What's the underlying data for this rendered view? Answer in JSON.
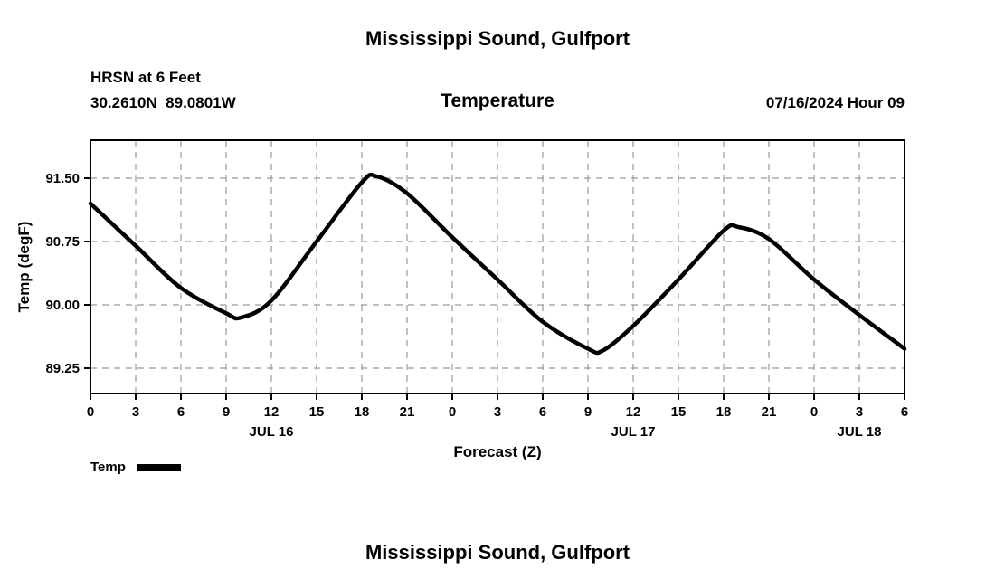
{
  "header": {
    "top_title": "Mississippi Sound, Gulfport",
    "station_name": "HRSN at 6 Feet",
    "station_coords": "30.2610N  89.0801W",
    "plot_title": "Temperature",
    "run_label": "07/16/2024 Hour 09"
  },
  "footer": {
    "next_plot_title": "Mississippi Sound, Gulfport"
  },
  "legend": {
    "entries": [
      {
        "label": "Temp",
        "color": "#000000"
      }
    ]
  },
  "colors": {
    "line": "#000000",
    "grid": "#999999",
    "frame": "#000000",
    "text": "#000000"
  },
  "chart_data": {
    "type": "line",
    "title": "Temperature",
    "xlabel": "Forecast (Z)",
    "ylabel": "Temp (degF)",
    "xlim": [
      0,
      54
    ],
    "ylim": [
      88.95,
      91.95
    ],
    "grid": true,
    "legend_position": "bottom-left",
    "xticks": [
      {
        "hour": 0,
        "label": "0"
      },
      {
        "hour": 3,
        "label": "3"
      },
      {
        "hour": 6,
        "label": "6"
      },
      {
        "hour": 9,
        "label": "9"
      },
      {
        "hour": 12,
        "label": "12"
      },
      {
        "hour": 15,
        "label": "15"
      },
      {
        "hour": 18,
        "label": "18"
      },
      {
        "hour": 21,
        "label": "21"
      },
      {
        "hour": 24,
        "label": "0"
      },
      {
        "hour": 27,
        "label": "3"
      },
      {
        "hour": 30,
        "label": "6"
      },
      {
        "hour": 33,
        "label": "9"
      },
      {
        "hour": 36,
        "label": "12"
      },
      {
        "hour": 39,
        "label": "15"
      },
      {
        "hour": 42,
        "label": "18"
      },
      {
        "hour": 45,
        "label": "21"
      },
      {
        "hour": 48,
        "label": "0"
      },
      {
        "hour": 51,
        "label": "3"
      },
      {
        "hour": 54,
        "label": "6"
      }
    ],
    "yticks": [
      {
        "value": 89.25,
        "label": "89.25"
      },
      {
        "value": 90.0,
        "label": "90.00"
      },
      {
        "value": 90.75,
        "label": "90.75"
      },
      {
        "value": 91.5,
        "label": "91.50"
      }
    ],
    "day_labels": [
      {
        "hour": 12,
        "label": "JUL 16"
      },
      {
        "hour": 36,
        "label": "JUL 17"
      },
      {
        "hour": 51,
        "label": "JUL 18"
      }
    ],
    "series": [
      {
        "name": "Temp",
        "color": "#000000",
        "x": [
          0,
          3,
          6,
          9,
          10,
          12,
          15,
          18,
          19,
          21,
          24,
          27,
          30,
          33,
          34,
          36,
          39,
          42,
          43,
          45,
          48,
          51,
          54
        ],
        "y": [
          91.2,
          90.7,
          90.2,
          89.9,
          89.85,
          90.05,
          90.75,
          91.45,
          91.52,
          91.32,
          90.8,
          90.3,
          89.8,
          89.48,
          89.46,
          89.75,
          90.3,
          90.88,
          90.92,
          90.78,
          90.3,
          89.88,
          89.48
        ]
      }
    ]
  }
}
